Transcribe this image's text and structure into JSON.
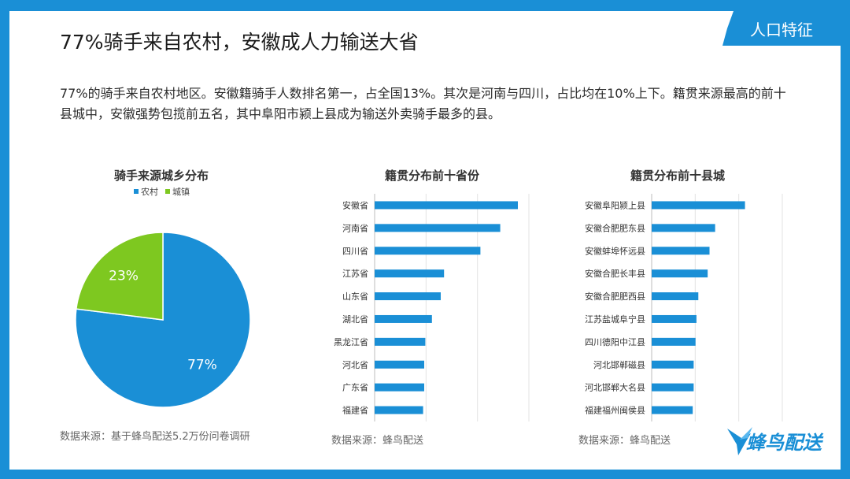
{
  "header": {
    "tag": "人口特征",
    "title": "77%骑手来自农村，安徽成人力输送大省",
    "description": "77%的骑手来自农村地区。安徽籍骑手人数排名第一，占全国13%。其次是河南与四川，占比均在10%上下。籍贯来源最高的前十县城中，安徽强势包揽前五名，其中阜阳市颍上县成为输送外卖骑手最多的县。"
  },
  "colors": {
    "accent": "#1a8fd6",
    "pie_rural": "#1a8fd6",
    "pie_town": "#7ec820",
    "bar": "#1a8fd6"
  },
  "chart_data": [
    {
      "type": "pie",
      "title": "骑手来源城乡分布",
      "categories": [
        "农村",
        "城镇"
      ],
      "values": [
        77,
        23
      ],
      "labels": [
        "77%",
        "23%"
      ],
      "legend": "top",
      "source": "数据来源：基于蜂鸟配送5.2万份问卷调研"
    },
    {
      "type": "bar",
      "orientation": "horizontal",
      "title": "籍贯分布前十省份",
      "categories": [
        "安徽省",
        "河南省",
        "四川省",
        "江苏省",
        "山东省",
        "湖北省",
        "黑龙江省",
        "河北省",
        "广东省",
        "福建省"
      ],
      "values": [
        13,
        11.4,
        9.6,
        6.3,
        6.0,
        5.2,
        4.6,
        4.5,
        4.5,
        4.4
      ],
      "xlim": [
        0,
        14
      ],
      "grid": true,
      "source": "数据来源：蜂鸟配送"
    },
    {
      "type": "bar",
      "orientation": "horizontal",
      "title": "籍贯分布前十县城",
      "categories": [
        "安徽阜阳颍上县",
        "安徽合肥肥东县",
        "安徽蚌埠怀远县",
        "安徽合肥长丰县",
        "安徽合肥肥西县",
        "江苏盐城阜宁县",
        "四川德阳中江县",
        "河北邯郸磁县",
        "河北邯郸大名县",
        "福建福州闽侯县"
      ],
      "values": [
        1.0,
        0.68,
        0.62,
        0.6,
        0.5,
        0.48,
        0.47,
        0.45,
        0.45,
        0.44
      ],
      "xlim": [
        0,
        1.4
      ],
      "grid": true,
      "source": "数据来源：蜂鸟配送"
    }
  ],
  "logo": {
    "text": "蜂鸟配送"
  }
}
